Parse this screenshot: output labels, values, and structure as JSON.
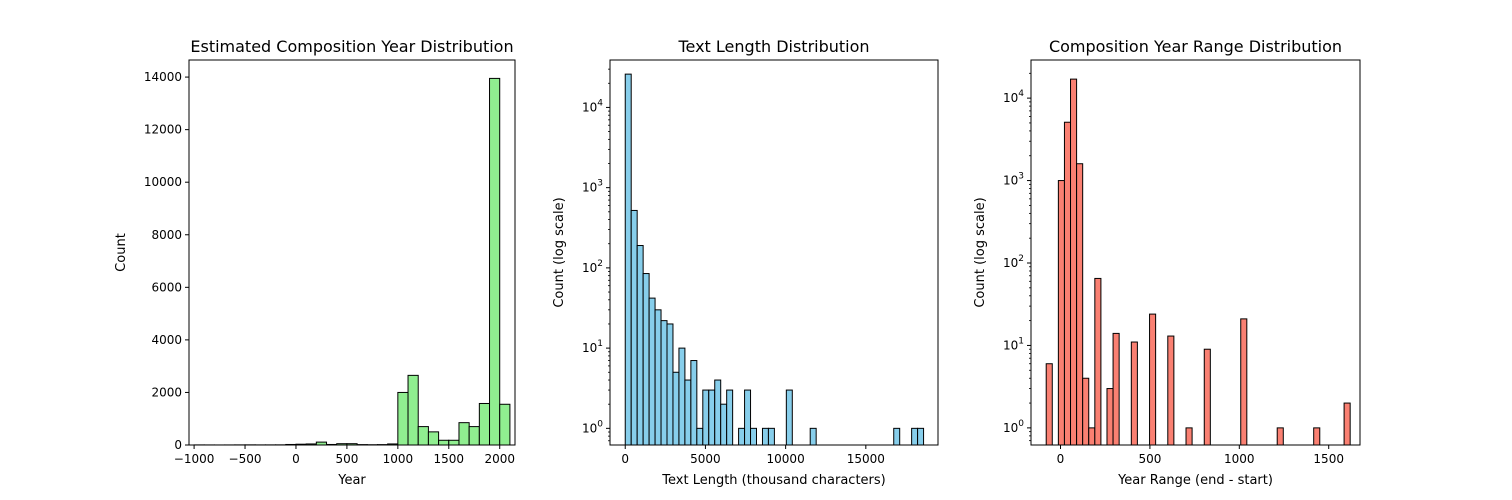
{
  "chart_data": [
    {
      "type": "histogram",
      "title": "Estimated Composition Year Distribution",
      "xlabel": "Year",
      "ylabel": "Count",
      "yscale": "linear",
      "xlim": [
        -1050,
        2150
      ],
      "ylim": [
        0,
        14650
      ],
      "xticks": [
        -1000,
        -500,
        0,
        500,
        1000,
        1500,
        2000
      ],
      "xtick_labels": [
        "−1000",
        "−500",
        "0",
        "500",
        "1000",
        "1500",
        "2000"
      ],
      "yticks": [
        0,
        2000,
        4000,
        6000,
        8000,
        10000,
        12000,
        14000
      ],
      "ytick_labels": [
        "0",
        "2000",
        "4000",
        "6000",
        "8000",
        "10000",
        "12000",
        "14000"
      ],
      "bar_color": "#90ee90",
      "edge_color": "#000000",
      "bins": [
        {
          "x0": -1000,
          "x1": -900,
          "count": 4
        },
        {
          "x0": -900,
          "x1": -800,
          "count": 3
        },
        {
          "x0": -800,
          "x1": -700,
          "count": 2
        },
        {
          "x0": -700,
          "x1": -600,
          "count": 3
        },
        {
          "x0": -600,
          "x1": -500,
          "count": 5
        },
        {
          "x0": -500,
          "x1": -400,
          "count": 6
        },
        {
          "x0": -400,
          "x1": -300,
          "count": 4
        },
        {
          "x0": -300,
          "x1": -200,
          "count": 5
        },
        {
          "x0": -200,
          "x1": -100,
          "count": 6
        },
        {
          "x0": -100,
          "x1": 0,
          "count": 20
        },
        {
          "x0": 0,
          "x1": 100,
          "count": 30
        },
        {
          "x0": 100,
          "x1": 200,
          "count": 40
        },
        {
          "x0": 200,
          "x1": 300,
          "count": 110
        },
        {
          "x0": 300,
          "x1": 400,
          "count": 20
        },
        {
          "x0": 400,
          "x1": 500,
          "count": 50
        },
        {
          "x0": 500,
          "x1": 600,
          "count": 50
        },
        {
          "x0": 600,
          "x1": 700,
          "count": 15
        },
        {
          "x0": 700,
          "x1": 800,
          "count": 10
        },
        {
          "x0": 800,
          "x1": 900,
          "count": 15
        },
        {
          "x0": 900,
          "x1": 1000,
          "count": 40
        },
        {
          "x0": 1000,
          "x1": 1100,
          "count": 2000
        },
        {
          "x0": 1100,
          "x1": 1200,
          "count": 2650
        },
        {
          "x0": 1200,
          "x1": 1300,
          "count": 700
        },
        {
          "x0": 1300,
          "x1": 1400,
          "count": 500
        },
        {
          "x0": 1400,
          "x1": 1500,
          "count": 180
        },
        {
          "x0": 1500,
          "x1": 1600,
          "count": 180
        },
        {
          "x0": 1600,
          "x1": 1700,
          "count": 850
        },
        {
          "x0": 1700,
          "x1": 1800,
          "count": 700
        },
        {
          "x0": 1800,
          "x1": 1900,
          "count": 1580
        },
        {
          "x0": 1900,
          "x1": 2000,
          "count": 13950
        },
        {
          "x0": 2000,
          "x1": 2100,
          "count": 1550
        }
      ]
    },
    {
      "type": "histogram",
      "title": "Text Length Distribution",
      "xlabel": "Text Length (thousand characters)",
      "ylabel": "Count (log scale)",
      "yscale": "log",
      "xlim": [
        -950,
        19500
      ],
      "ylim": [
        0.62,
        39000
      ],
      "xticks": [
        0,
        5000,
        10000,
        15000
      ],
      "xtick_labels": [
        "0",
        "5000",
        "10000",
        "15000"
      ],
      "yticks": [
        1,
        10,
        100,
        1000,
        10000
      ],
      "ytick_labels": [
        [
          "10",
          "0"
        ],
        [
          "10",
          "1"
        ],
        [
          "10",
          "2"
        ],
        [
          "10",
          "3"
        ],
        [
          "10",
          "4"
        ]
      ],
      "bar_color": "#87ceeb",
      "edge_color": "#000000",
      "bins": [
        {
          "x0": 0,
          "x1": 372,
          "count": 26000
        },
        {
          "x0": 372,
          "x1": 744,
          "count": 520
        },
        {
          "x0": 744,
          "x1": 1116,
          "count": 190
        },
        {
          "x0": 1116,
          "x1": 1488,
          "count": 85
        },
        {
          "x0": 1488,
          "x1": 1860,
          "count": 42
        },
        {
          "x0": 1860,
          "x1": 2232,
          "count": 30
        },
        {
          "x0": 2232,
          "x1": 2604,
          "count": 22
        },
        {
          "x0": 2604,
          "x1": 2976,
          "count": 20
        },
        {
          "x0": 2976,
          "x1": 3348,
          "count": 5
        },
        {
          "x0": 3348,
          "x1": 3720,
          "count": 10
        },
        {
          "x0": 3720,
          "x1": 4092,
          "count": 4
        },
        {
          "x0": 4092,
          "x1": 4464,
          "count": 7
        },
        {
          "x0": 4464,
          "x1": 4836,
          "count": 1
        },
        {
          "x0": 4836,
          "x1": 5208,
          "count": 3
        },
        {
          "x0": 5208,
          "x1": 5580,
          "count": 3
        },
        {
          "x0": 5580,
          "x1": 5952,
          "count": 4
        },
        {
          "x0": 5952,
          "x1": 6324,
          "count": 2
        },
        {
          "x0": 6324,
          "x1": 6696,
          "count": 3
        },
        {
          "x0": 6696,
          "x1": 7068,
          "count": 0
        },
        {
          "x0": 7068,
          "x1": 7440,
          "count": 1
        },
        {
          "x0": 7440,
          "x1": 7812,
          "count": 3
        },
        {
          "x0": 7812,
          "x1": 8184,
          "count": 1
        },
        {
          "x0": 8184,
          "x1": 8556,
          "count": 0
        },
        {
          "x0": 8556,
          "x1": 8928,
          "count": 1
        },
        {
          "x0": 8928,
          "x1": 9300,
          "count": 1
        },
        {
          "x0": 10044,
          "x1": 10416,
          "count": 3
        },
        {
          "x0": 11532,
          "x1": 11904,
          "count": 1
        },
        {
          "x0": 16740,
          "x1": 17112,
          "count": 1
        },
        {
          "x0": 17856,
          "x1": 18228,
          "count": 1
        },
        {
          "x0": 18228,
          "x1": 18600,
          "count": 1
        }
      ]
    },
    {
      "type": "histogram",
      "title": "Composition Year Range Distribution",
      "xlabel": "Year Range (end - start)",
      "ylabel": "Count (log scale)",
      "yscale": "log",
      "xlim": [
        -165,
        1675
      ],
      "ylim": [
        0.62,
        29000
      ],
      "xticks": [
        0,
        500,
        1000,
        1500
      ],
      "xtick_labels": [
        "0",
        "500",
        "1000",
        "1500"
      ],
      "yticks": [
        1,
        10,
        100,
        1000,
        10000
      ],
      "ytick_labels": [
        [
          "10",
          "0"
        ],
        [
          "10",
          "1"
        ],
        [
          "10",
          "2"
        ],
        [
          "10",
          "3"
        ],
        [
          "10",
          "4"
        ]
      ],
      "bar_color": "#fa8072",
      "edge_color": "#000000",
      "bins": [
        {
          "x0": -80,
          "x1": -46,
          "count": 6
        },
        {
          "x0": -12,
          "x1": 22,
          "count": 1000
        },
        {
          "x0": 22,
          "x1": 56,
          "count": 5100
        },
        {
          "x0": 56,
          "x1": 90,
          "count": 17000
        },
        {
          "x0": 90,
          "x1": 124,
          "count": 1600
        },
        {
          "x0": 124,
          "x1": 158,
          "count": 4
        },
        {
          "x0": 158,
          "x1": 192,
          "count": 1
        },
        {
          "x0": 192,
          "x1": 226,
          "count": 65
        },
        {
          "x0": 260,
          "x1": 294,
          "count": 3
        },
        {
          "x0": 294,
          "x1": 328,
          "count": 14
        },
        {
          "x0": 396,
          "x1": 430,
          "count": 11
        },
        {
          "x0": 498,
          "x1": 532,
          "count": 24
        },
        {
          "x0": 600,
          "x1": 634,
          "count": 13
        },
        {
          "x0": 702,
          "x1": 736,
          "count": 1
        },
        {
          "x0": 804,
          "x1": 838,
          "count": 9
        },
        {
          "x0": 1008,
          "x1": 1042,
          "count": 21
        },
        {
          "x0": 1212,
          "x1": 1246,
          "count": 1
        },
        {
          "x0": 1416,
          "x1": 1450,
          "count": 1
        },
        {
          "x0": 1586,
          "x1": 1620,
          "count": 2
        }
      ]
    }
  ]
}
